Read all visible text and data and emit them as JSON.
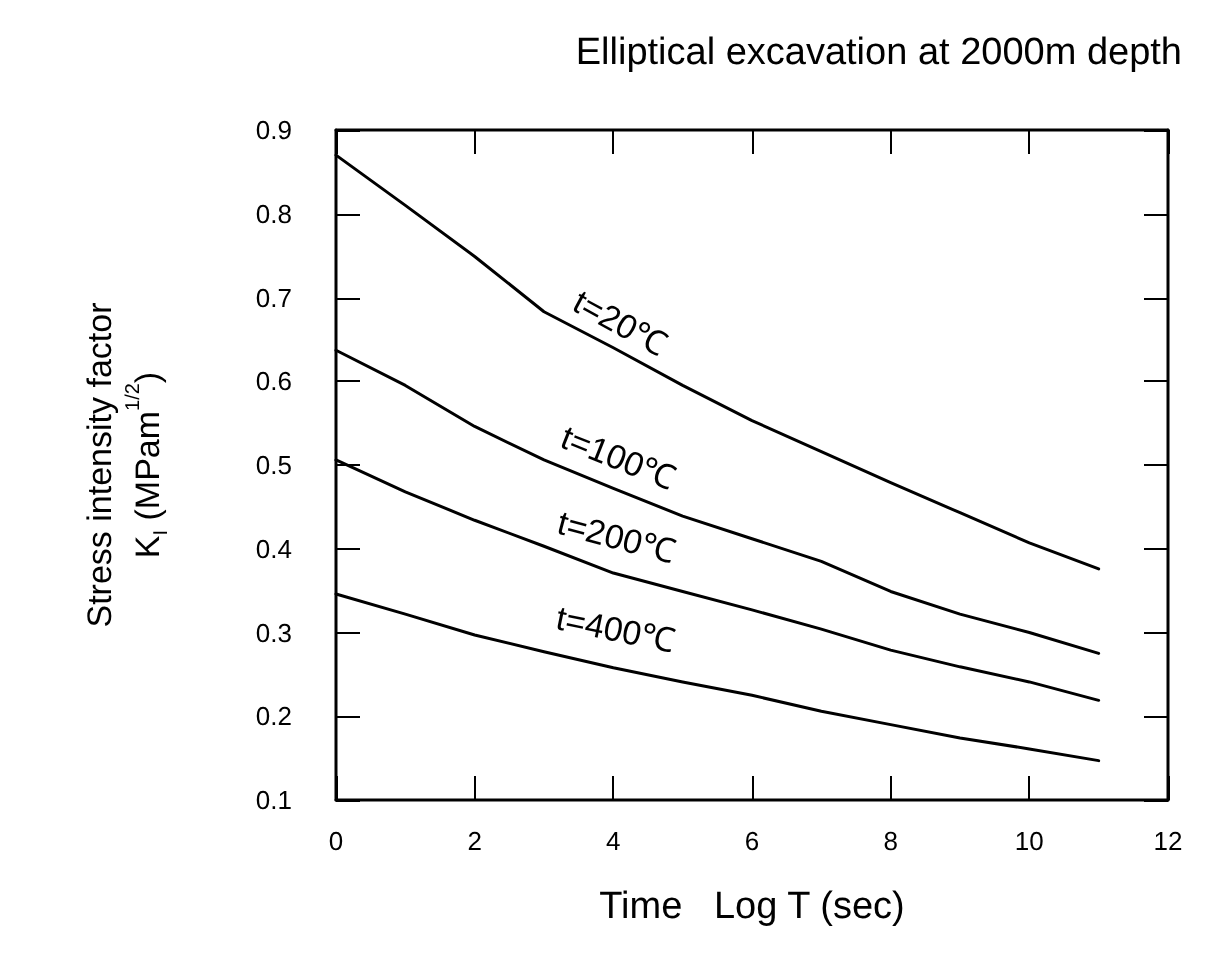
{
  "chart_data": {
    "type": "line",
    "title": "Elliptical excavation at 2000m depth",
    "xlabel": "Time   Log T (sec)",
    "ylabel": "Stress intensity factor\nK$_{I}$ (MPam$^{1/2}$)",
    "x": [
      0,
      1,
      2,
      3,
      4,
      5,
      6,
      7,
      8,
      9,
      10,
      11
    ],
    "series": [
      {
        "name": "t=20℃",
        "color": "#000000",
        "values": [
          0.87,
          0.81,
          0.749,
          0.683,
          0.64,
          0.595,
          0.553,
          0.516,
          0.479,
          0.443,
          0.407,
          0.376
        ]
      },
      {
        "name": "t=100℃",
        "color": "#000000",
        "values": [
          0.637,
          0.595,
          0.546,
          0.506,
          0.472,
          0.439,
          0.412,
          0.385,
          0.349,
          0.322,
          0.3,
          0.275
        ]
      },
      {
        "name": "t=200℃",
        "color": "#000000",
        "values": [
          0.506,
          0.468,
          0.434,
          0.403,
          0.371,
          0.349,
          0.327,
          0.304,
          0.279,
          0.259,
          0.241,
          0.219
        ]
      },
      {
        "name": "t=400℃",
        "color": "#000000",
        "values": [
          0.346,
          0.322,
          0.297,
          0.277,
          0.258,
          0.241,
          0.225,
          0.206,
          0.19,
          0.174,
          0.161,
          0.147
        ]
      }
    ],
    "xlim": [
      0,
      12
    ],
    "xticks": [
      0,
      2,
      4,
      6,
      8,
      10,
      12
    ],
    "ylim": [
      0.1,
      0.9
    ],
    "yticks": [
      0.1,
      0.2,
      0.3,
      0.4,
      0.5,
      0.6,
      0.7,
      0.8,
      0.9
    ],
    "grid": false,
    "legend": false,
    "marker": "none",
    "line_style": "solid"
  }
}
